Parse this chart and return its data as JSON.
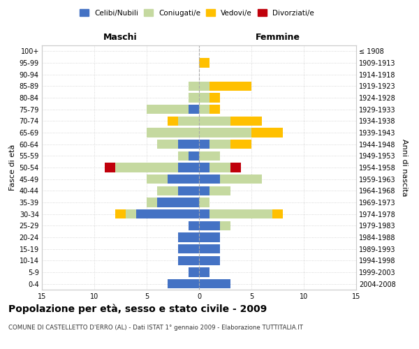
{
  "age_groups": [
    "0-4",
    "5-9",
    "10-14",
    "15-19",
    "20-24",
    "25-29",
    "30-34",
    "35-39",
    "40-44",
    "45-49",
    "50-54",
    "55-59",
    "60-64",
    "65-69",
    "70-74",
    "75-79",
    "80-84",
    "85-89",
    "90-94",
    "95-99",
    "100+"
  ],
  "birth_years": [
    "2004-2008",
    "1999-2003",
    "1994-1998",
    "1989-1993",
    "1984-1988",
    "1979-1983",
    "1974-1978",
    "1969-1973",
    "1964-1968",
    "1959-1963",
    "1954-1958",
    "1949-1953",
    "1944-1948",
    "1939-1943",
    "1934-1938",
    "1929-1933",
    "1924-1928",
    "1919-1923",
    "1914-1918",
    "1909-1913",
    "≤ 1908"
  ],
  "males": {
    "celibi": [
      3,
      1,
      2,
      2,
      2,
      1,
      6,
      4,
      2,
      3,
      2,
      1,
      2,
      0,
      0,
      1,
      0,
      0,
      0,
      0,
      0
    ],
    "coniugati": [
      0,
      0,
      0,
      0,
      0,
      0,
      1,
      1,
      2,
      2,
      6,
      1,
      2,
      5,
      2,
      4,
      1,
      1,
      0,
      0,
      0
    ],
    "vedovi": [
      0,
      0,
      0,
      0,
      0,
      0,
      1,
      0,
      0,
      0,
      0,
      0,
      0,
      0,
      1,
      0,
      0,
      0,
      0,
      0,
      0
    ],
    "divorziati": [
      0,
      0,
      0,
      0,
      0,
      0,
      0,
      0,
      0,
      0,
      1,
      0,
      0,
      0,
      0,
      0,
      0,
      0,
      0,
      0,
      0
    ]
  },
  "females": {
    "nubili": [
      3,
      1,
      2,
      2,
      2,
      2,
      1,
      0,
      1,
      2,
      1,
      0,
      1,
      0,
      0,
      0,
      0,
      0,
      0,
      0,
      0
    ],
    "coniugate": [
      0,
      0,
      0,
      0,
      0,
      1,
      6,
      1,
      2,
      4,
      2,
      2,
      2,
      5,
      3,
      1,
      1,
      1,
      0,
      0,
      0
    ],
    "vedove": [
      0,
      0,
      0,
      0,
      0,
      0,
      1,
      0,
      0,
      0,
      0,
      0,
      2,
      3,
      3,
      1,
      1,
      4,
      0,
      1,
      0
    ],
    "divorziate": [
      0,
      0,
      0,
      0,
      0,
      0,
      0,
      0,
      0,
      0,
      1,
      0,
      0,
      0,
      0,
      0,
      0,
      0,
      0,
      0,
      0
    ]
  },
  "colors": {
    "celibi_nubili": "#4472c4",
    "coniugati": "#c5d9a0",
    "vedovi": "#ffc000",
    "divorziati": "#c0000b"
  },
  "title": "Popolazione per età, sesso e stato civile - 2009",
  "subtitle": "COMUNE DI CASTELLETTO D'ERRO (AL) - Dati ISTAT 1° gennaio 2009 - Elaborazione TUTTITALIA.IT",
  "xlabel_left": "Maschi",
  "xlabel_right": "Femmine",
  "ylabel_left": "Fasce di età",
  "ylabel_right": "Anni di nascita",
  "xlim": 15,
  "background_color": "#ffffff",
  "grid_color": "#cccccc"
}
